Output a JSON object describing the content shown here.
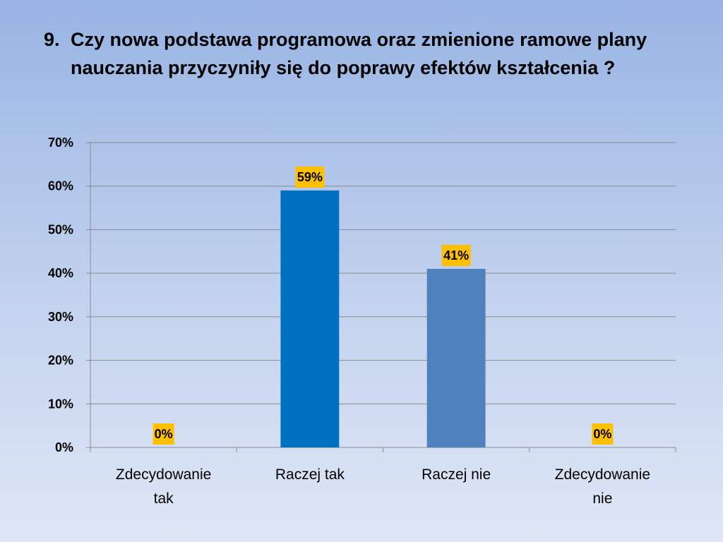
{
  "slide": {
    "number": "9.",
    "title": "Czy nowa podstawa programowa oraz zmienione ramowe plany nauczania przyczyniły się do poprawy efektów kształcenia ?"
  },
  "chart_data": {
    "type": "bar",
    "categories": [
      [
        "Zdecydowanie",
        "tak"
      ],
      [
        "Raczej tak"
      ],
      [
        "Raczej nie"
      ],
      [
        "Zdecydowanie",
        "nie"
      ]
    ],
    "values": [
      0,
      59,
      41,
      0
    ],
    "data_labels": [
      "0%",
      "59%",
      "41%",
      "0%"
    ],
    "y_ticks": [
      "0%",
      "10%",
      "20%",
      "30%",
      "40%",
      "50%",
      "60%",
      "70%"
    ],
    "ylim": [
      0,
      70
    ],
    "grid": true,
    "colors": {
      "bars": [
        "#0070c0",
        "#0070c0",
        "#4f81bd",
        "#4f81bd"
      ],
      "label_background": "#ffc000",
      "gridline": "#8c8c8c"
    }
  }
}
